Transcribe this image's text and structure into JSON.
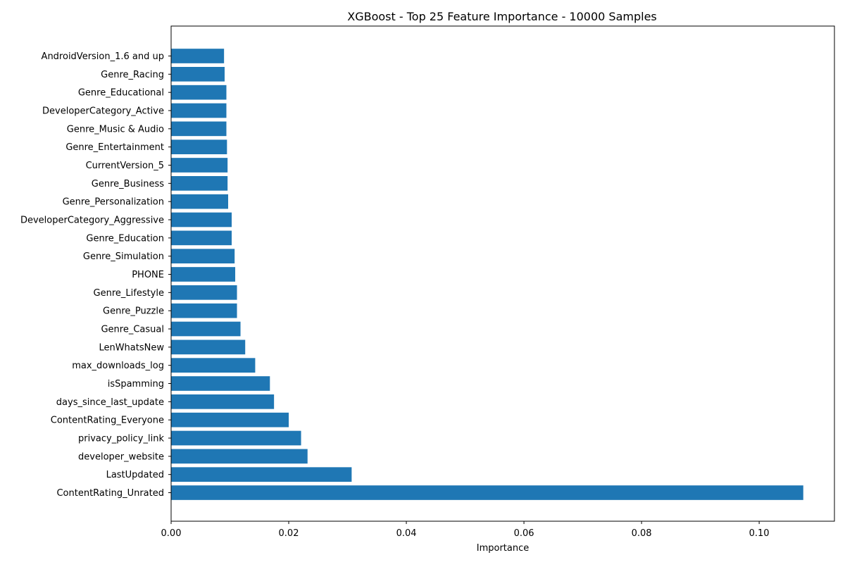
{
  "chart_data": {
    "type": "bar",
    "orientation": "horizontal",
    "title": "XGBoost - Top 25 Feature Importance - 10000 Samples",
    "xlabel": "Importance",
    "ylabel": "",
    "xlim": [
      0,
      0.1128
    ],
    "grid": false,
    "legend": "none",
    "bar_color": "#1f77b4",
    "x_ticks": [
      0.0,
      0.02,
      0.04,
      0.06,
      0.08,
      0.1
    ],
    "x_tick_labels": [
      "0.00",
      "0.02",
      "0.04",
      "0.06",
      "0.08",
      "0.10"
    ],
    "categories": [
      "ContentRating_Unrated",
      "LastUpdated",
      "developer_website",
      "privacy_policy_link",
      "ContentRating_Everyone",
      "days_since_last_update",
      "isSpamming",
      "max_downloads_log",
      "LenWhatsNew",
      "Genre_Casual",
      "Genre_Puzzle",
      "Genre_Lifestyle",
      "PHONE",
      "Genre_Simulation",
      "Genre_Education",
      "DeveloperCategory_Aggressive",
      "Genre_Personalization",
      "Genre_Business",
      "CurrentVersion_5",
      "Genre_Entertainment",
      "Genre_Music & Audio",
      "DeveloperCategory_Active",
      "Genre_Educational",
      "Genre_Racing",
      "AndroidVersion_1.6 and up"
    ],
    "values": [
      0.1075,
      0.0307,
      0.0232,
      0.0221,
      0.02,
      0.0175,
      0.0168,
      0.0143,
      0.0126,
      0.0118,
      0.0112,
      0.0112,
      0.0109,
      0.0108,
      0.0103,
      0.0103,
      0.0097,
      0.0096,
      0.0096,
      0.0095,
      0.0094,
      0.0094,
      0.0094,
      0.0091,
      0.009
    ]
  }
}
